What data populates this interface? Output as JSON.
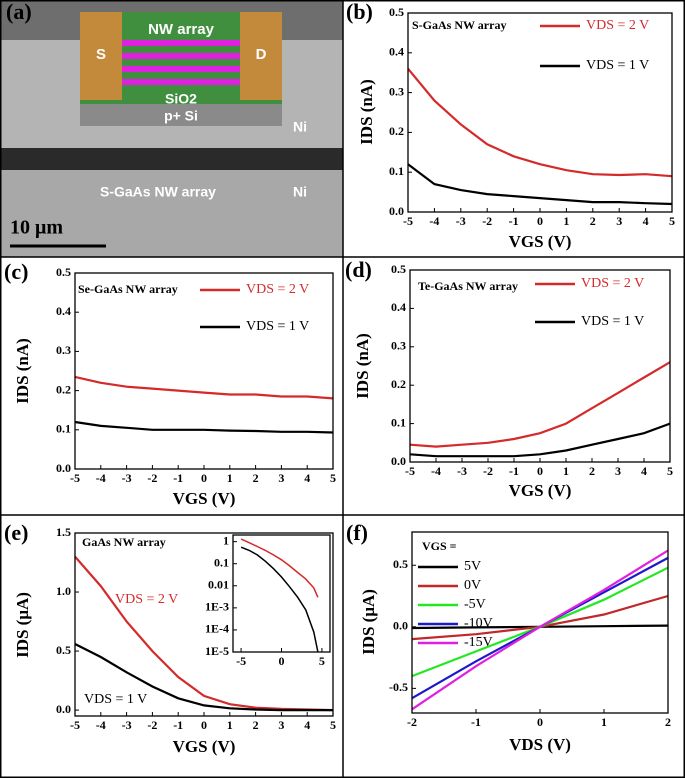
{
  "panel_a": {
    "panel": "(a)",
    "device_source": "S",
    "device_drain": "D",
    "device_channel": "NW array",
    "device_oxide": "SiO2",
    "device_substrate": "p+ Si",
    "metal_top": "Ni",
    "metal_bottom": "Ni",
    "array_label": "S-GaAs  NW array",
    "scale_bar": "10 μm"
  },
  "chart_data": [
    {
      "type": "line",
      "panel": "(b)",
      "title": "S-GaAs NW array",
      "xlabel": "VGS (V)",
      "ylabel": "IDS (nA)",
      "x": [
        -5,
        -4,
        -3,
        -2,
        -1,
        0,
        1,
        2,
        3,
        4,
        5
      ],
      "series": [
        {
          "name": "VDS = 2 V",
          "color": "#d42a2a",
          "values": [
            0.36,
            0.28,
            0.22,
            0.17,
            0.14,
            0.12,
            0.105,
            0.095,
            0.093,
            0.095,
            0.09
          ]
        },
        {
          "name": "VDS = 1 V",
          "color": "#000000",
          "values": [
            0.12,
            0.07,
            0.055,
            0.045,
            0.04,
            0.035,
            0.03,
            0.025,
            0.025,
            0.022,
            0.02
          ]
        }
      ],
      "xlim": [
        -5,
        5
      ],
      "xticks": [
        -5,
        -4,
        -3,
        -2,
        -1,
        0,
        1,
        2,
        3,
        4,
        5
      ],
      "ylim": [
        0,
        0.5
      ],
      "yticks": [
        {
          "value": 0,
          "label": "0.0"
        },
        0.1,
        0.2,
        0.3,
        0.4,
        0.5
      ]
    },
    {
      "type": "line",
      "panel": "(c)",
      "title": "Se-GaAs NW array",
      "xlabel": "VGS (V)",
      "ylabel": "IDS (nA)",
      "x": [
        -5,
        -4,
        -3,
        -2,
        -1,
        0,
        1,
        2,
        3,
        4,
        5
      ],
      "series": [
        {
          "name": "VDS = 2 V",
          "color": "#d42a2a",
          "values": [
            0.235,
            0.22,
            0.21,
            0.205,
            0.2,
            0.195,
            0.19,
            0.19,
            0.185,
            0.185,
            0.18
          ]
        },
        {
          "name": "VDS = 1 V",
          "color": "#000000",
          "values": [
            0.12,
            0.11,
            0.105,
            0.1,
            0.1,
            0.1,
            0.098,
            0.097,
            0.095,
            0.095,
            0.093
          ]
        }
      ],
      "xlim": [
        -5,
        5
      ],
      "xticks": [
        -5,
        -4,
        -3,
        -2,
        -1,
        0,
        1,
        2,
        3,
        4,
        5
      ],
      "ylim": [
        0,
        0.5
      ],
      "yticks": [
        {
          "value": 0,
          "label": "0.0"
        },
        0.1,
        0.2,
        0.3,
        0.4,
        0.5
      ]
    },
    {
      "type": "line",
      "panel": "(d)",
      "title": "Te-GaAs NW array",
      "xlabel": "VGS (V)",
      "ylabel": "IDS (nA)",
      "x": [
        -5,
        -4,
        -3,
        -2,
        -1,
        0,
        1,
        2,
        3,
        4,
        5
      ],
      "series": [
        {
          "name": "VDS = 2 V",
          "color": "#d42a2a",
          "values": [
            0.045,
            0.04,
            0.045,
            0.05,
            0.06,
            0.075,
            0.1,
            0.14,
            0.18,
            0.22,
            0.26
          ]
        },
        {
          "name": "VDS = 1 V",
          "color": "#000000",
          "values": [
            0.02,
            0.015,
            0.015,
            0.015,
            0.015,
            0.02,
            0.03,
            0.045,
            0.06,
            0.075,
            0.1
          ]
        }
      ],
      "xlim": [
        -5,
        5
      ],
      "xticks": [
        -5,
        -4,
        -3,
        -2,
        -1,
        0,
        1,
        2,
        3,
        4,
        5
      ],
      "ylim": [
        0,
        0.5
      ],
      "yticks": [
        {
          "value": 0,
          "label": "0.0"
        },
        0.1,
        0.2,
        0.3,
        0.4,
        0.5
      ]
    },
    {
      "type": "line",
      "panel": "(e)",
      "title": "GaAs NW array",
      "xlabel": "VGS (V)",
      "ylabel": "IDS (μA)",
      "x": [
        -5,
        -4,
        -3,
        -2,
        -1,
        0,
        1,
        2,
        3,
        4,
        5
      ],
      "series": [
        {
          "name": "VDS = 2 V",
          "color": "#d42a2a",
          "values": [
            1.3,
            1.05,
            0.75,
            0.5,
            0.28,
            0.12,
            0.05,
            0.02,
            0.01,
            0.005,
            0
          ]
        },
        {
          "name": "VDS = 1 V",
          "color": "#000000",
          "values": [
            0.56,
            0.45,
            0.32,
            0.2,
            0.1,
            0.04,
            0.015,
            0.005,
            0,
            0,
            0
          ]
        }
      ],
      "xlim": [
        -5,
        5
      ],
      "xticks": [
        -5,
        -4,
        -3,
        -2,
        -1,
        0,
        1,
        2,
        3,
        4,
        5
      ],
      "ylim": [
        -0.05,
        1.5
      ],
      "yticks": [
        {
          "value": 0,
          "label": "0.0"
        },
        0.5,
        {
          "value": 1,
          "label": "1.0"
        },
        1.5
      ]
    },
    {
      "type": "line",
      "log_y": true,
      "x": [
        -5,
        -4,
        -3,
        -2,
        -1,
        0,
        1,
        2,
        3,
        4,
        4.5
      ],
      "series": [
        {
          "color": "#d42a2a",
          "values": [
            1.3,
            0.9,
            0.6,
            0.4,
            0.25,
            0.15,
            0.08,
            0.04,
            0.02,
            0.008,
            0.003
          ]
        },
        {
          "color": "#000000",
          "values": [
            0.56,
            0.4,
            0.25,
            0.13,
            0.06,
            0.025,
            0.009,
            0.003,
            0.0008,
            8e-05,
            1e-05
          ]
        }
      ],
      "xlim": [
        -6,
        6
      ],
      "xticks": [
        -5,
        0,
        5
      ],
      "ylim": [
        1e-05,
        2
      ],
      "yticks": [
        1,
        0.1,
        0.01,
        {
          "value": 0.001,
          "label": "1E-3"
        },
        {
          "value": 0.0001,
          "label": "1E-4"
        },
        {
          "value": 1e-05,
          "label": "1E-5"
        }
      ]
    },
    {
      "type": "line",
      "panel": "(f)",
      "legend_title": "VGS =",
      "xlabel": "VDS (V)",
      "ylabel": "IDS (μA)",
      "x": [
        -2,
        -1,
        0,
        1,
        2
      ],
      "series": [
        {
          "name": "5V",
          "color": "#000000",
          "values": [
            -0.01,
            -0.005,
            0,
            0.005,
            0.01
          ]
        },
        {
          "name": "0V",
          "color": "#c0282a",
          "values": [
            -0.1,
            -0.06,
            0,
            0.1,
            0.25
          ]
        },
        {
          "name": "-5V",
          "color": "#22e822",
          "values": [
            -0.4,
            -0.2,
            0,
            0.22,
            0.48
          ]
        },
        {
          "name": "-10V",
          "color": "#1a1acc",
          "values": [
            -0.58,
            -0.28,
            0,
            0.28,
            0.56
          ]
        },
        {
          "name": "-15V",
          "color": "#e020e0",
          "values": [
            -0.67,
            -0.32,
            0,
            0.3,
            0.62
          ]
        }
      ],
      "xlim": [
        -2,
        2
      ],
      "xticks": [
        -2,
        -1,
        0,
        1,
        2
      ],
      "ylim": [
        -0.7,
        0.77
      ],
      "yticks": [
        -0.5,
        {
          "value": 0,
          "label": "0.0"
        },
        0.5
      ]
    }
  ]
}
